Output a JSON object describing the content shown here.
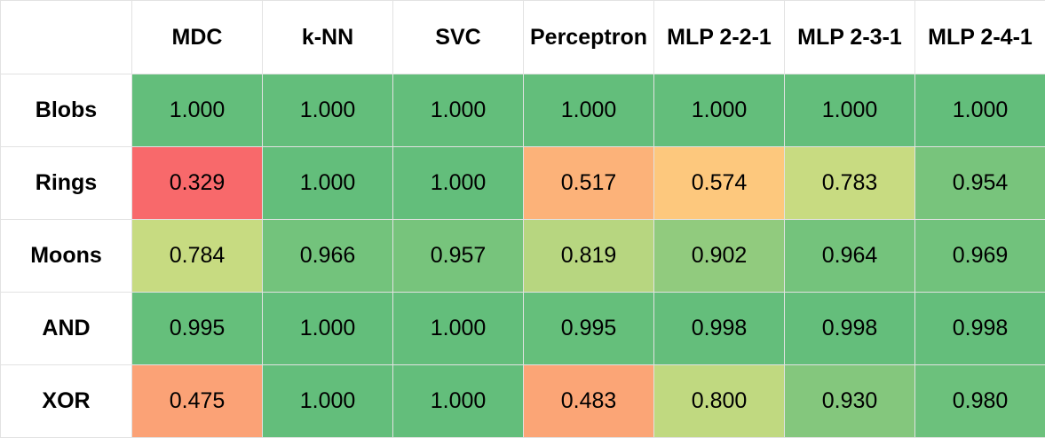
{
  "chart_data": {
    "type": "heatmap",
    "columns": [
      "MDC",
      "k-NN",
      "SVC",
      "Perceptron",
      "MLP 2-2-1",
      "MLP 2-3-1",
      "MLP 2-4-1"
    ],
    "rows": [
      "Blobs",
      "Rings",
      "Moons",
      "AND",
      "XOR"
    ],
    "values": [
      [
        "1.000",
        "1.000",
        "1.000",
        "1.000",
        "1.000",
        "1.000",
        "1.000"
      ],
      [
        "0.329",
        "1.000",
        "1.000",
        "0.517",
        "0.574",
        "0.783",
        "0.954"
      ],
      [
        "0.784",
        "0.966",
        "0.957",
        "0.819",
        "0.902",
        "0.964",
        "0.969"
      ],
      [
        "0.995",
        "1.000",
        "1.000",
        "0.995",
        "0.998",
        "0.998",
        "0.998"
      ],
      [
        "0.475",
        "1.000",
        "1.000",
        "0.483",
        "0.800",
        "0.930",
        "0.980"
      ]
    ],
    "color_scale": {
      "low": "#f8696b",
      "mid": "#ffeb84",
      "high": "#63be7b"
    }
  }
}
